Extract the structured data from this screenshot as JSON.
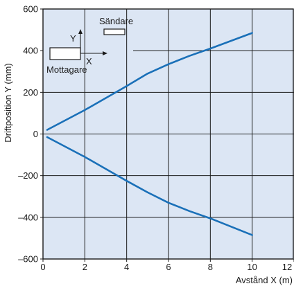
{
  "chart_data": {
    "type": "line",
    "title": "",
    "xlabel": "Avstånd X (m)",
    "ylabel": "Driftposition Y (mm)",
    "xlim": [
      0,
      12
    ],
    "ylim": [
      -600,
      600
    ],
    "x_ticks": [
      "0",
      "2",
      "4",
      "6",
      "8",
      "10",
      "12"
    ],
    "y_ticks": [
      "600",
      "400",
      "200",
      "0",
      "–200",
      "–400",
      "–600"
    ],
    "grid": true,
    "series": [
      {
        "x": [
          0.2,
          2,
          4,
          5,
          6,
          7,
          8,
          10
        ],
        "values": [
          20,
          115,
          230,
          290,
          335,
          375,
          410,
          485
        ]
      },
      {
        "x": [
          0.2,
          2,
          4,
          5,
          6,
          7,
          8,
          10
        ],
        "values": [
          -15,
          -110,
          -225,
          -280,
          -330,
          -370,
          -405,
          -485
        ]
      }
    ],
    "colors": {
      "background": "#dce6f4",
      "line": "#1a70b8",
      "grid": "#1a1a1a"
    }
  },
  "inset": {
    "sender_label": "Sändare",
    "receiver_label": "Mottagare",
    "x_axis_label": "X",
    "y_axis_label": "Y"
  }
}
